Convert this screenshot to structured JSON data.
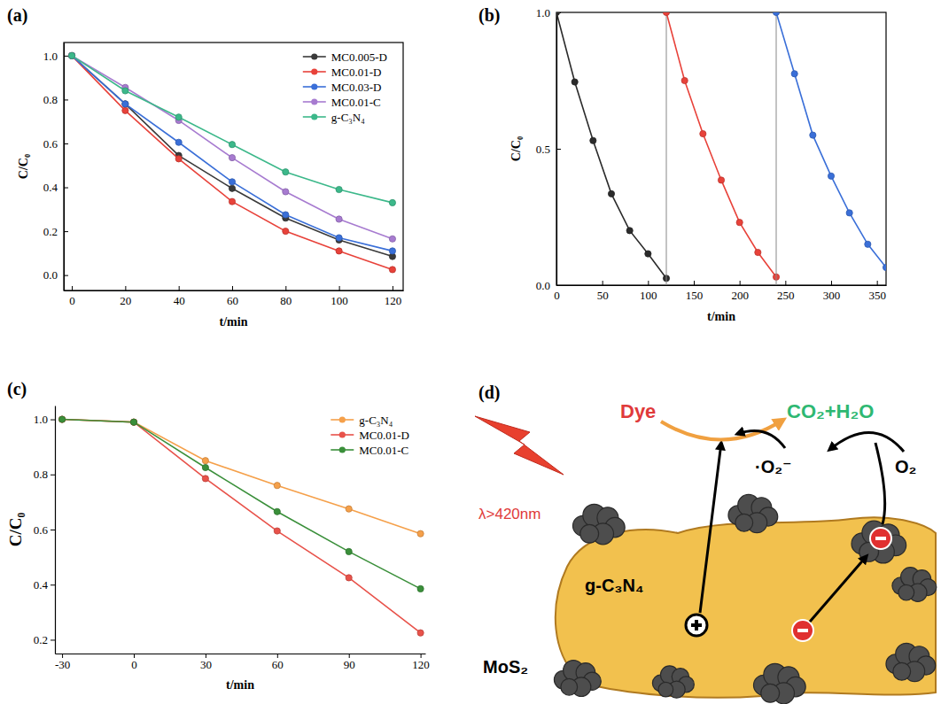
{
  "chart_data": [
    {
      "type": "line",
      "title": "(a)",
      "x_label": "t/min",
      "y_label": "C/C₀",
      "x": [
        0,
        20,
        40,
        60,
        80,
        100,
        120
      ],
      "xlim": [
        -3,
        124
      ],
      "xticks": [
        0,
        20,
        40,
        60,
        80,
        100,
        120
      ],
      "ylim": [
        -0.07,
        1.06
      ],
      "yticks": [
        {
          "value": 0,
          "label": "0.0"
        },
        0.2,
        0.4,
        0.6,
        0.8,
        {
          "value": 1,
          "label": "1.0"
        }
      ],
      "grid": false,
      "legend": "upper right",
      "marker": "circle",
      "line_style": "solid",
      "series": [
        {
          "name": "MC0.005-D",
          "color": "#3a3a3a",
          "values": [
            1,
            0.78,
            0.545,
            0.395,
            0.26,
            0.16,
            0.085
          ]
        },
        {
          "name": "MC0.01-D",
          "color": "#e8423a",
          "values": [
            1,
            0.75,
            0.53,
            0.335,
            0.2,
            0.11,
            0.025
          ]
        },
        {
          "name": "MC0.03-D",
          "color": "#3a6fd8",
          "values": [
            1,
            0.78,
            0.605,
            0.425,
            0.275,
            0.17,
            0.11
          ]
        },
        {
          "name": "MC0.01-C",
          "color": "#a77bd0",
          "values": [
            1,
            0.855,
            0.705,
            0.535,
            0.38,
            0.255,
            0.165
          ]
        },
        {
          "name": "g-C₃N₄",
          "color": "#3cb88a",
          "values": [
            1,
            0.84,
            0.72,
            0.595,
            0.47,
            0.39,
            0.33
          ]
        }
      ]
    },
    {
      "type": "line",
      "title": "(b)",
      "x_label": "t/min",
      "y_label": "C/C₀",
      "xlim": [
        0,
        360
      ],
      "xticks": [
        0,
        50,
        100,
        150,
        200,
        250,
        300,
        350
      ],
      "ylim": [
        0,
        1
      ],
      "yticks": [
        {
          "value": 0,
          "label": "0.0"
        },
        0.5,
        {
          "value": 1,
          "label": "1.0"
        }
      ],
      "grid": false,
      "marker": "circle",
      "line_style": "solid",
      "series": [
        {
          "color": "#2b2b2b",
          "x": [
            0,
            20,
            40,
            60,
            80,
            100,
            120
          ],
          "values": [
            1,
            0.745,
            0.53,
            0.335,
            0.2,
            0.115,
            0.025
          ]
        },
        {
          "color": "#e8423a",
          "x": [
            120,
            140,
            160,
            180,
            200,
            220,
            240
          ],
          "values": [
            1,
            0.75,
            0.555,
            0.385,
            0.23,
            0.12,
            0.03
          ]
        },
        {
          "color": "#3a6fd8",
          "x": [
            240,
            260,
            280,
            300,
            320,
            340,
            360
          ],
          "values": [
            1,
            0.775,
            0.55,
            0.4,
            0.265,
            0.15,
            0.065
          ]
        }
      ]
    },
    {
      "type": "line",
      "title": "(c)",
      "x_label": "t/min",
      "y_label": "C/C₀",
      "x": [
        -30,
        0,
        30,
        60,
        90,
        120
      ],
      "xlim": [
        -33,
        122
      ],
      "xticks": [
        -30,
        0,
        30,
        60,
        90,
        120
      ],
      "ylim": [
        0.15,
        1.05
      ],
      "yticks": [
        0.2,
        0.4,
        0.6,
        0.8,
        {
          "value": 1,
          "label": "1.0"
        }
      ],
      "grid": false,
      "legend": "upper right",
      "marker": "circle",
      "line_style": "solid",
      "series": [
        {
          "name": "g-C₃N₄",
          "color": "#f5a04a",
          "values": [
            1,
            0.99,
            0.85,
            0.76,
            0.675,
            0.585
          ]
        },
        {
          "name": "MC0.01-D",
          "color": "#e8524a",
          "values": [
            1,
            0.99,
            0.785,
            0.595,
            0.425,
            0.225
          ]
        },
        {
          "name": "MC0.01-C",
          "color": "#3a8f3a",
          "values": [
            1,
            0.99,
            0.825,
            0.665,
            0.52,
            0.385
          ]
        }
      ]
    }
  ],
  "diagram": {
    "title": "(d)",
    "light": "λ>420nm",
    "reactant": "Dye",
    "product": "CO₂+H₂O",
    "radical": "·O₂⁻",
    "oxygen": "O₂",
    "semiconductor": "g-C₃N₄",
    "cocatalyst": "MoS₂"
  }
}
